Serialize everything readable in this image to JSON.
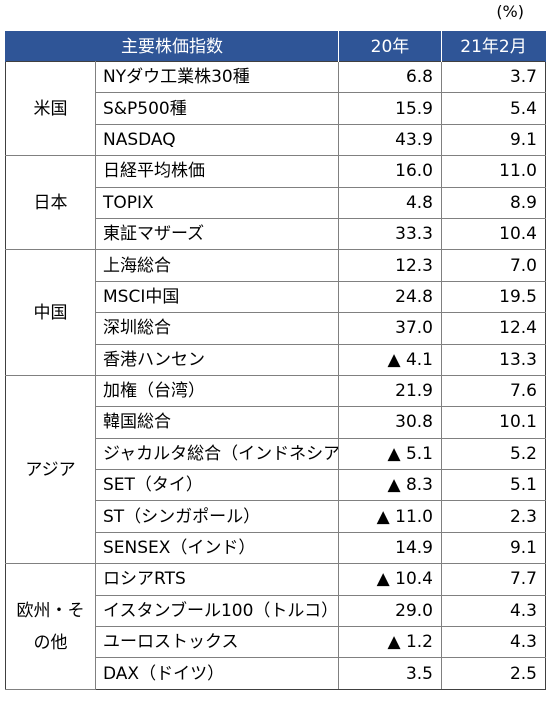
{
  "unit_label": "(%)",
  "header": {
    "index_label": "主要株価指数",
    "col1": "20年",
    "col2": "21年2月"
  },
  "groups": [
    {
      "region": "米国",
      "rows": [
        {
          "name": "NYダウ工業株30種",
          "v1": "6.8",
          "v2": "3.7"
        },
        {
          "name": "S&P500種",
          "v1": "15.9",
          "v2": "5.4"
        },
        {
          "name": "NASDAQ",
          "v1": "43.9",
          "v2": "9.1"
        }
      ]
    },
    {
      "region": "日本",
      "rows": [
        {
          "name": "日経平均株価",
          "v1": "16.0",
          "v2": "11.0"
        },
        {
          "name": "TOPIX",
          "v1": "4.8",
          "v2": "8.9"
        },
        {
          "name": "東証マザーズ",
          "v1": "33.3",
          "v2": "10.4"
        }
      ]
    },
    {
      "region": "中国",
      "rows": [
        {
          "name": "上海総合",
          "v1": "12.3",
          "v2": "7.0"
        },
        {
          "name": "MSCI中国",
          "v1": "24.8",
          "v2": "19.5"
        },
        {
          "name": "深圳総合",
          "v1": "37.0",
          "v2": "12.4"
        },
        {
          "name": "香港ハンセン",
          "v1": "▲ 4.1",
          "v2": "13.3"
        }
      ]
    },
    {
      "region": "アジア",
      "rows": [
        {
          "name": "加権（台湾）",
          "v1": "21.9",
          "v2": "7.6"
        },
        {
          "name": "韓国総合",
          "v1": "30.8",
          "v2": "10.1"
        },
        {
          "name": "ジャカルタ総合（インドネシア）",
          "v1": "▲ 5.1",
          "v2": "5.2"
        },
        {
          "name": "SET（タイ）",
          "v1": "▲ 8.3",
          "v2": "5.1"
        },
        {
          "name": "ST（シンガポール）",
          "v1": "▲ 11.0",
          "v2": "2.3"
        },
        {
          "name": "SENSEX（インド）",
          "v1": "14.9",
          "v2": "9.1"
        }
      ]
    },
    {
      "region": "欧州・その他",
      "rows": [
        {
          "name": "ロシアRTS",
          "v1": "▲ 10.4",
          "v2": "7.7"
        },
        {
          "name": "イスタンブール100（トルコ）",
          "v1": "29.0",
          "v2": "4.3"
        },
        {
          "name": "ユーロストックス",
          "v1": "▲ 1.2",
          "v2": "4.3"
        },
        {
          "name": "DAX（ドイツ）",
          "v1": "3.5",
          "v2": "2.5"
        }
      ]
    }
  ]
}
